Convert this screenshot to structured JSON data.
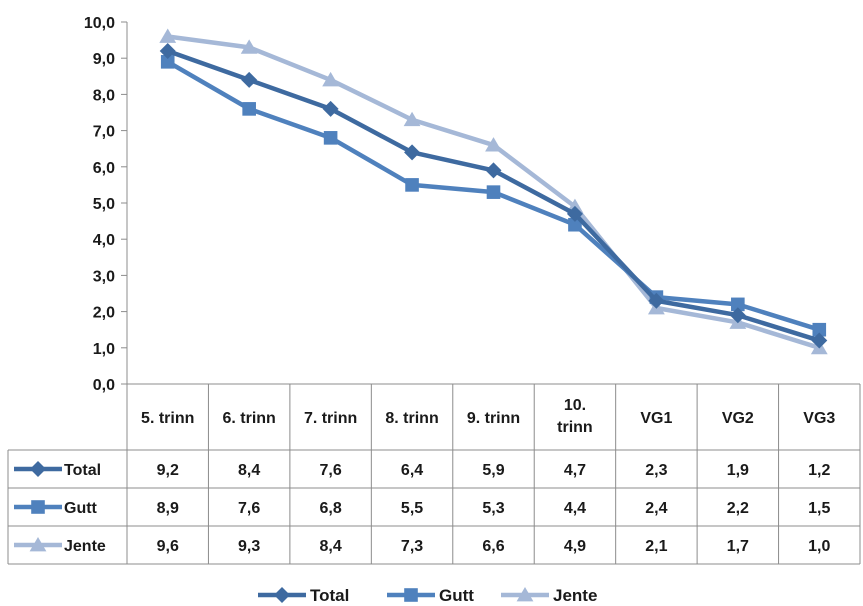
{
  "chart_data": {
    "type": "line",
    "categories": [
      "5. trinn",
      "6. trinn",
      "7. trinn",
      "8. trinn",
      "9. trinn",
      "10. trinn",
      "VG1",
      "VG2",
      "VG3"
    ],
    "series": [
      {
        "name": "Total",
        "values": [
          9.2,
          8.4,
          7.6,
          6.4,
          5.9,
          4.7,
          2.3,
          1.9,
          1.2
        ],
        "color": "#3e6aa0",
        "marker": "diamond"
      },
      {
        "name": "Gutt",
        "values": [
          8.9,
          7.6,
          6.8,
          5.5,
          5.3,
          4.4,
          2.4,
          2.2,
          1.5
        ],
        "color": "#4f81bd",
        "marker": "square"
      },
      {
        "name": "Jente",
        "values": [
          9.6,
          9.3,
          8.4,
          7.3,
          6.6,
          4.9,
          2.1,
          1.7,
          1.0
        ],
        "color": "#a5b8d7",
        "marker": "triangle"
      }
    ],
    "yticks": [
      "0,0",
      "1,0",
      "2,0",
      "3,0",
      "4,0",
      "5,0",
      "6,0",
      "7,0",
      "8,0",
      "9,0",
      "10,0"
    ],
    "ylim": [
      0,
      10
    ],
    "decimal_separator": ",",
    "data_table": true,
    "legend_position": "bottom",
    "grid": false
  }
}
